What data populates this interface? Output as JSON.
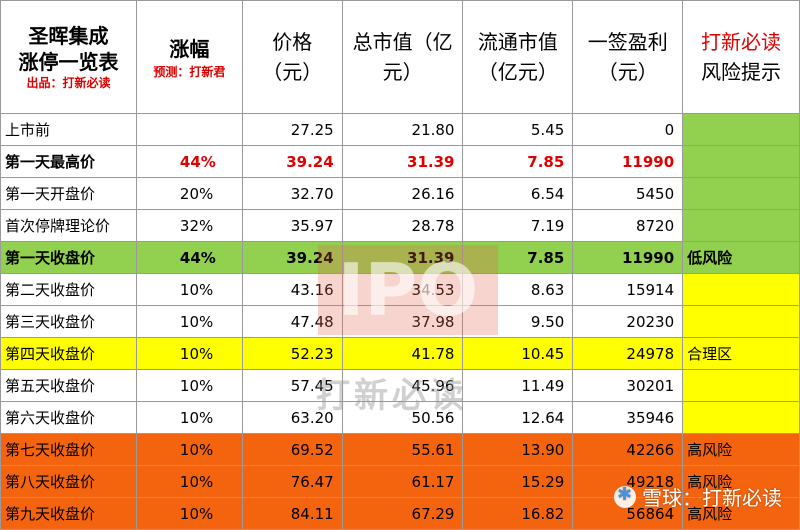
{
  "header": {
    "title": "圣晖集成\n涨停一览表",
    "credit": "出品：打新必读",
    "change": "涨幅",
    "prediction": "预测：打新君",
    "price": "价格\n（元）",
    "total_cap": "总市值（亿\n元）",
    "float_cap": "流通市值\n（亿元）",
    "profit": "一签盈利\n（元）",
    "risk_red": "打新必读",
    "risk": "风险提示"
  },
  "rows": [
    {
      "label": "上市前",
      "change": "",
      "price": "27.25",
      "total": "21.80",
      "float": "5.45",
      "profit": "0",
      "risk": "",
      "style": "plain"
    },
    {
      "label": "第一天最高价",
      "change": "44%",
      "price": "39.24",
      "total": "31.39",
      "float": "7.85",
      "profit": "11990",
      "risk": "",
      "style": "boldred"
    },
    {
      "label": "第一天开盘价",
      "change": "20%",
      "price": "32.70",
      "total": "26.16",
      "float": "6.54",
      "profit": "5450",
      "risk": "",
      "style": "plain"
    },
    {
      "label": "首次停牌理论价",
      "change": "32%",
      "price": "35.97",
      "total": "28.78",
      "float": "7.19",
      "profit": "8720",
      "risk": "",
      "style": "plain"
    },
    {
      "label": "第一天收盘价",
      "change": "44%",
      "price": "39.24",
      "total": "31.39",
      "float": "7.85",
      "profit": "11990",
      "risk": "低风险",
      "style": "green"
    },
    {
      "label": "第二天收盘价",
      "change": "10%",
      "price": "43.16",
      "total": "34.53",
      "float": "8.63",
      "profit": "15914",
      "risk": "",
      "style": "plain-yellow"
    },
    {
      "label": "第三天收盘价",
      "change": "10%",
      "price": "47.48",
      "total": "37.98",
      "float": "9.50",
      "profit": "20230",
      "risk": "",
      "style": "plain-yellow"
    },
    {
      "label": "第四天收盘价",
      "change": "10%",
      "price": "52.23",
      "total": "41.78",
      "float": "10.45",
      "profit": "24978",
      "risk": "合理区",
      "style": "yellow"
    },
    {
      "label": "第五天收盘价",
      "change": "10%",
      "price": "57.45",
      "total": "45.96",
      "float": "11.49",
      "profit": "30201",
      "risk": "",
      "style": "plain-yellow"
    },
    {
      "label": "第六天收盘价",
      "change": "10%",
      "price": "63.20",
      "total": "50.56",
      "float": "12.64",
      "profit": "35946",
      "risk": "",
      "style": "plain-yellow"
    },
    {
      "label": "第七天收盘价",
      "change": "10%",
      "price": "69.52",
      "total": "55.61",
      "float": "13.90",
      "profit": "42266",
      "risk": "高风险",
      "style": "orange"
    },
    {
      "label": "第八天收盘价",
      "change": "10%",
      "price": "76.47",
      "total": "61.17",
      "float": "15.29",
      "profit": "49218",
      "risk": "高风险",
      "style": "orange"
    },
    {
      "label": "第九天收盘价",
      "change": "10%",
      "price": "84.11",
      "total": "67.29",
      "float": "16.82",
      "profit": "56864",
      "risk": "高风险",
      "style": "orange"
    }
  ],
  "colors": {
    "green": "#92d050",
    "yellow": "#ffff00",
    "orange": "#f4640f",
    "red": "#e00000"
  },
  "watermarks": {
    "ipo": "IPO",
    "brand": "打新必读",
    "corner": "雪球：打新必读",
    "corner_icon": "snowball-icon"
  }
}
